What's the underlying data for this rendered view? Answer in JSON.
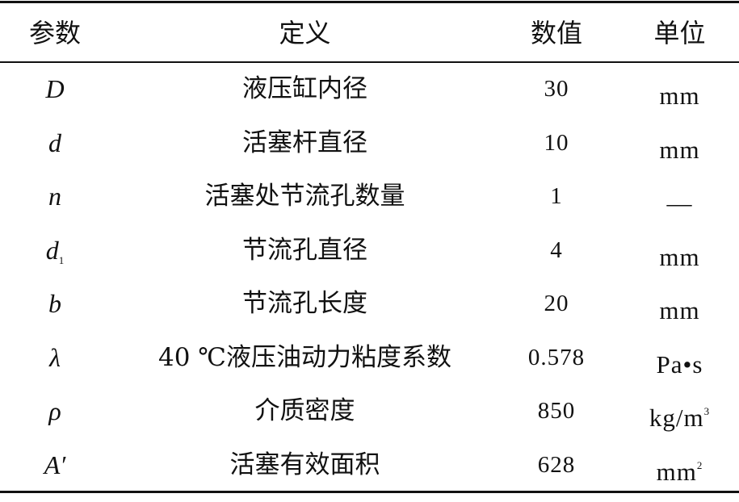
{
  "table": {
    "headers": [
      "参数",
      "定义",
      "数值",
      "单位"
    ],
    "rows": [
      {
        "symbol": "D",
        "sub": "",
        "definition": "液压缸内径",
        "value": "30",
        "unit": "mm",
        "unit_sup": ""
      },
      {
        "symbol": "d",
        "sub": "",
        "definition": "活塞杆直径",
        "value": "10",
        "unit": "mm",
        "unit_sup": ""
      },
      {
        "symbol": "n",
        "sub": "",
        "definition": "活塞处节流孔数量",
        "value": "1",
        "unit": "—",
        "unit_sup": ""
      },
      {
        "symbol": "d",
        "sub": "1",
        "definition": "节流孔直径",
        "value": "4",
        "unit": "mm",
        "unit_sup": ""
      },
      {
        "symbol": "b",
        "sub": "",
        "definition": "节流孔长度",
        "value": "20",
        "unit": "mm",
        "unit_sup": ""
      },
      {
        "symbol": "λ",
        "sub": "",
        "definition": "40 ℃液压油动力粘度系数",
        "value": "0.578",
        "unit": "Pa•s",
        "unit_sup": ""
      },
      {
        "symbol": "ρ",
        "sub": "",
        "definition": "介质密度",
        "value": "850",
        "unit": "kg/m",
        "unit_sup": "3"
      },
      {
        "symbol": "A′",
        "sub": "",
        "definition": "活塞有效面积",
        "value": "628",
        "unit": "mm",
        "unit_sup": "2"
      }
    ]
  }
}
